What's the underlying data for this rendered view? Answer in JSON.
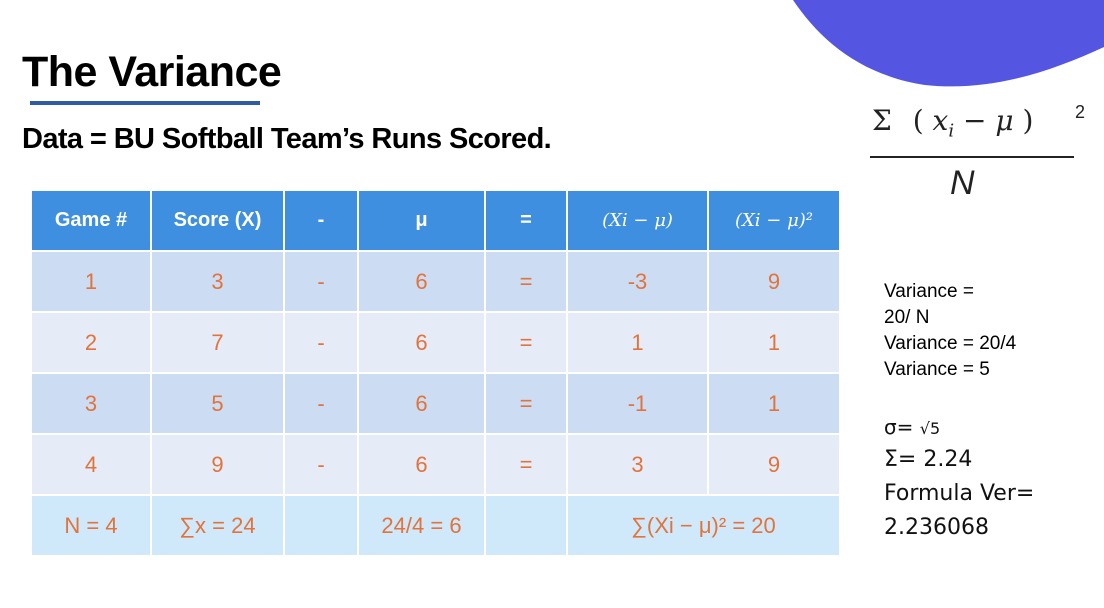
{
  "title": "The Variance",
  "subtitle": "Data = BU Softball Team’s Runs Scored.",
  "formula": {
    "sigma": "Σ",
    "open": "(",
    "x": "x",
    "sub_i": "i",
    "minus": "−",
    "mu": "μ",
    "close": ")",
    "exponent": "2",
    "denominator": "N"
  },
  "table": {
    "headers": [
      "Game #",
      "Score (X)",
      "-",
      "μ",
      "=",
      "(Xi − μ)",
      "(Xi − μ)²"
    ],
    "rows": [
      [
        "1",
        "3",
        "-",
        "6",
        "=",
        "-3",
        "9"
      ],
      [
        "2",
        "7",
        "-",
        "6",
        "=",
        "1",
        "1"
      ],
      [
        "3",
        "5",
        "-",
        "6",
        "=",
        "-1",
        "1"
      ],
      [
        "4",
        "9",
        "-",
        "6",
        "=",
        "3",
        "9"
      ]
    ],
    "footer": {
      "n": "N = 4",
      "sum_x": "∑x = 24",
      "mean": "24/4 = 6",
      "sum_sq": "∑(Xi − μ)² = 20"
    }
  },
  "calculation": [
    "Variance =",
    "20/ N",
    "Variance = 20/4",
    "Variance = 5"
  ],
  "sigma_calc": {
    "line1_prefix": "σ= ",
    "line1_root": "√5",
    "line2": "Σ= 2.24",
    "line3": "Formula Ver=",
    "line4": "2.236068"
  },
  "colors": {
    "header_bg": "#3f8fe0",
    "row_dark": "#ccdcf2",
    "row_light": "#e5ecf8",
    "footer_bg": "#cfe8fa",
    "cell_text": "#e2733a",
    "blob": "#5455e0",
    "underline": "#2e5c9e"
  }
}
